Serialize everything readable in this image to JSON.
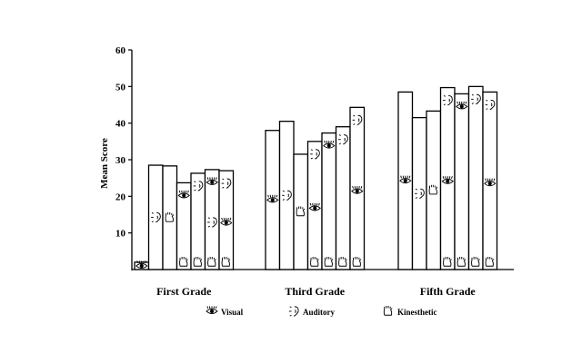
{
  "chart_data": {
    "type": "bar",
    "ylabel": "Mean Score",
    "xlabel": "",
    "ylim": [
      0,
      60
    ],
    "yticks": [
      10,
      20,
      30,
      40,
      50,
      60
    ],
    "grid": false,
    "legend_position": "bottom",
    "groups": [
      {
        "label": "First Grade",
        "values": [
          2,
          28.5,
          28.3,
          23.7,
          26.3,
          27.3,
          27
        ]
      },
      {
        "label": "Third Grade",
        "values": [
          38,
          40.5,
          31.5,
          35,
          37.3,
          39,
          44.3
        ]
      },
      {
        "label": "Fifth Grade",
        "values": [
          48.5,
          41.5,
          43.3,
          49.7,
          48,
          50,
          48.5
        ]
      }
    ],
    "legend": [
      {
        "icon": "eye-icon",
        "label": "Visual"
      },
      {
        "icon": "ear-icon",
        "label": "Auditory"
      },
      {
        "icon": "hand-icon",
        "label": "Kinesthetic"
      }
    ],
    "bar_icons": [
      [
        [
          "eye-icon"
        ],
        [
          "ear-icon"
        ],
        [
          "hand-icon"
        ],
        [
          "eye-icon",
          "hand-icon"
        ],
        [
          "ear-icon",
          "hand-icon"
        ],
        [
          "eye-icon",
          "ear-icon",
          "hand-icon"
        ],
        [
          "ear-icon",
          "eye-icon",
          "hand-icon"
        ]
      ],
      [
        [
          "eye-icon"
        ],
        [
          "ear-icon"
        ],
        [
          "hand-icon"
        ],
        [
          "ear-icon",
          "eye-icon",
          "hand-icon"
        ],
        [
          "eye-icon",
          "hand-icon"
        ],
        [
          "ear-icon",
          "hand-icon"
        ],
        [
          "ear-icon",
          "eye-icon",
          "hand-icon"
        ]
      ],
      [
        [
          "eye-icon"
        ],
        [
          "ear-icon"
        ],
        [
          "hand-icon"
        ],
        [
          "ear-icon",
          "eye-icon",
          "hand-icon"
        ],
        [
          "eye-icon",
          "hand-icon"
        ],
        [
          "ear-icon",
          "hand-icon"
        ],
        [
          "ear-icon",
          "eye-icon",
          "hand-icon"
        ]
      ]
    ]
  }
}
